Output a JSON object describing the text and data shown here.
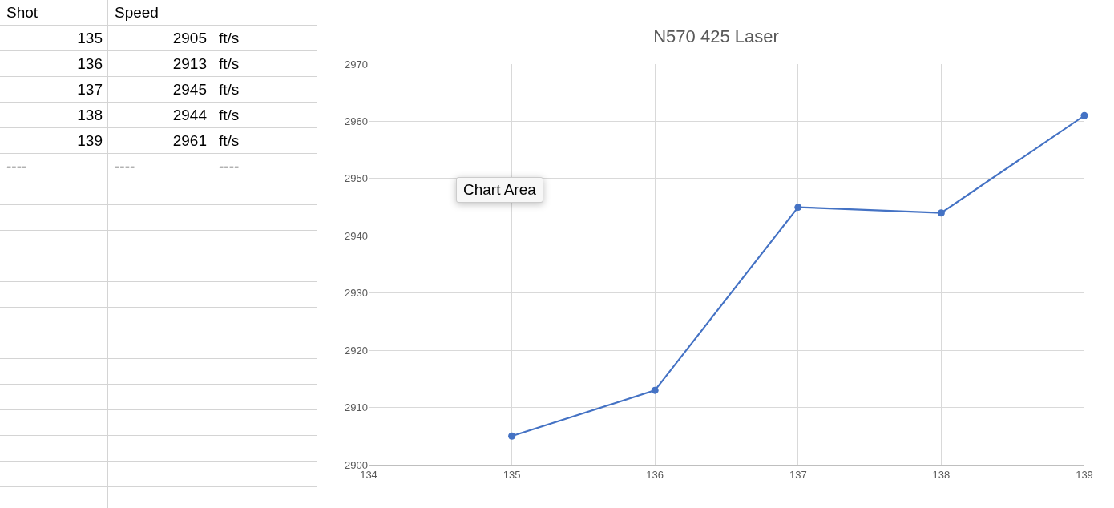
{
  "chart_data": {
    "type": "line",
    "title": "N570 425 Laser",
    "x": [
      135,
      136,
      137,
      138,
      139
    ],
    "series": [
      {
        "color": "#4472c4",
        "values": [
          2905,
          2913,
          2945,
          2944,
          2961
        ]
      }
    ],
    "xlim": [
      134,
      139
    ],
    "xticks": [
      134,
      135,
      136,
      137,
      138,
      139
    ],
    "ylim": [
      2900,
      2970
    ],
    "yticks": [
      2900,
      2910,
      2920,
      2930,
      2940,
      2950,
      2960,
      2970
    ],
    "grid": true,
    "legend": false,
    "marker": "circle",
    "line_style": "solid",
    "annotations": [
      "Shot",
      "Speed",
      "135",
      "2905",
      "ft/s",
      "136",
      "2913",
      "ft/s",
      "137",
      "2945",
      "ft/s",
      "138",
      "2944",
      "ft/s",
      "139",
      "2961",
      "ft/s",
      "----",
      "----",
      "----",
      "Chart Area"
    ]
  }
}
